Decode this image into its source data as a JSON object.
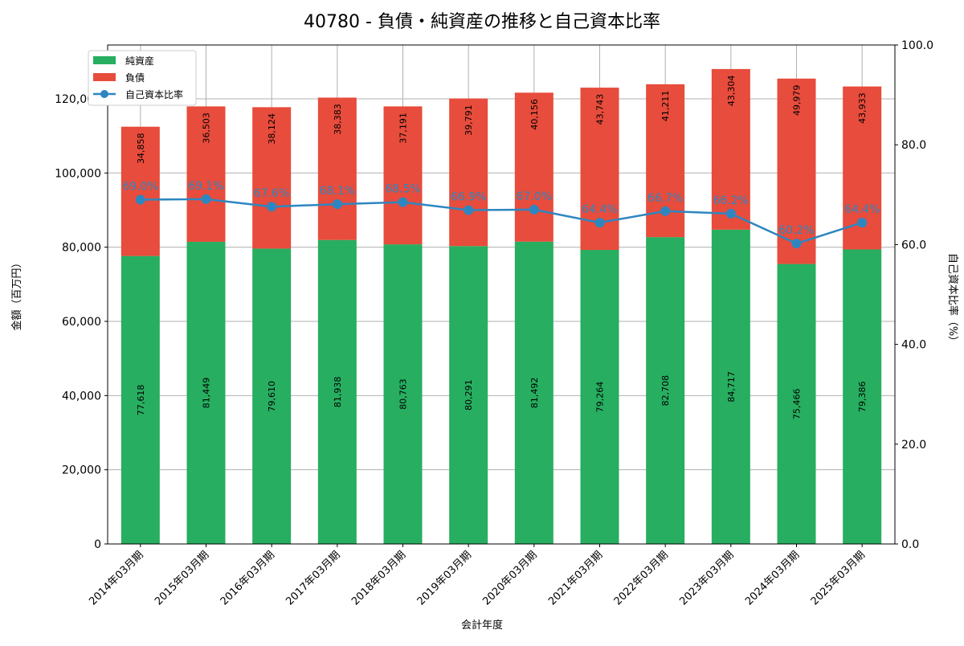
{
  "chart_data": {
    "type": "bar",
    "title": "40780 - 負債・純資産の推移と自己資本比率",
    "xlabel": "会計年度",
    "ylabel": "金額（百万円）",
    "y2label": "自己資本比率（%）",
    "ylim": [
      0,
      134500
    ],
    "y2lim": [
      0,
      100
    ],
    "yticks": [
      0,
      20000,
      40000,
      60000,
      80000,
      100000,
      120000
    ],
    "ytick_labels": [
      "0",
      "20,000",
      "40,000",
      "60,000",
      "80,000",
      "100,000",
      "120,000"
    ],
    "y2ticks": [
      0,
      20,
      40,
      60,
      80,
      100
    ],
    "y2tick_labels": [
      "0.0",
      "20.0",
      "40.0",
      "60.0",
      "80.0",
      "100.0"
    ],
    "grid": true,
    "legend_placement": "top-left",
    "categories": [
      "2014年03月期",
      "2015年03月期",
      "2016年03月期",
      "2017年03月期",
      "2018年03月期",
      "2019年03月期",
      "2020年03月期",
      "2021年03月期",
      "2022年03月期",
      "2023年03月期",
      "2024年03月期",
      "2025年03月期"
    ],
    "series": [
      {
        "name": "純資産",
        "type": "bar",
        "color": "#27ae60",
        "values": [
          77618,
          81449,
          79610,
          81938,
          80763,
          80291,
          81492,
          79264,
          82708,
          84717,
          75466,
          79386
        ],
        "labels": [
          "77,618",
          "81,449",
          "79,610",
          "81,938",
          "80,763",
          "80,291",
          "81,492",
          "79,264",
          "82,708",
          "84,717",
          "75,466",
          "79,386"
        ]
      },
      {
        "name": "負債",
        "type": "bar",
        "color": "#e74c3c",
        "values": [
          34858,
          36503,
          38124,
          38383,
          37191,
          39791,
          40156,
          43743,
          41211,
          43304,
          49979,
          43933
        ],
        "labels": [
          "34,858",
          "36,503",
          "38,124",
          "38,383",
          "37,191",
          "39,791",
          "40,156",
          "43,743",
          "41,211",
          "43,304",
          "49,979",
          "43,933"
        ]
      },
      {
        "name": "自己資本比率",
        "type": "line",
        "axis": "right",
        "color": "#2e86c1",
        "values": [
          69.0,
          69.1,
          67.6,
          68.1,
          68.5,
          66.9,
          67.0,
          64.4,
          66.7,
          66.2,
          60.2,
          64.4
        ],
        "labels": [
          "69.0%",
          "69.1%",
          "67.6%",
          "68.1%",
          "68.5%",
          "66.9%",
          "67.0%",
          "64.4%",
          "66.7%",
          "66.2%",
          "60.2%",
          "64.4%"
        ]
      }
    ]
  }
}
